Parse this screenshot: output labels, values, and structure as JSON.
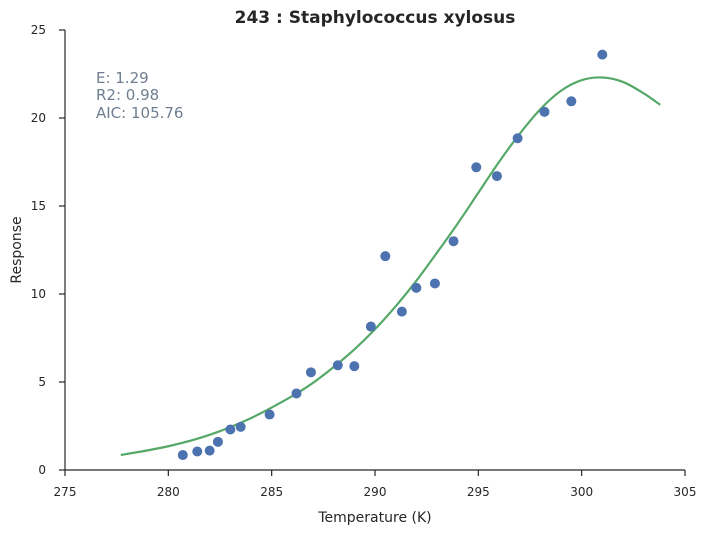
{
  "chart_data": {
    "type": "scatter",
    "title": "243 : Staphylococcus xylosus",
    "xlabel": "Temperature (K)",
    "ylabel": "Response",
    "xlim": [
      275,
      305
    ],
    "ylim": [
      0,
      25
    ],
    "xticks": [
      "275",
      "280",
      "285",
      "290",
      "295",
      "300",
      "305"
    ],
    "yticks": [
      "0",
      "5",
      "10",
      "15",
      "20",
      "25"
    ],
    "grid": false,
    "annotations": [
      "E:  1.29",
      "R2:  0.98",
      "AIC: 105.76"
    ],
    "series": [
      {
        "kind": "points",
        "color": "#4c72b0",
        "x": [
          280.7,
          281.4,
          282.0,
          282.4,
          283.0,
          283.5,
          284.9,
          286.2,
          286.9,
          288.2,
          289.0,
          289.8,
          290.5,
          291.3,
          292.0,
          292.9,
          293.8,
          294.9,
          295.9,
          296.9,
          298.2,
          299.5,
          301.0
        ],
        "y": [
          0.85,
          1.05,
          1.1,
          1.6,
          2.3,
          2.45,
          3.15,
          4.35,
          5.55,
          5.95,
          5.9,
          8.15,
          12.15,
          9.0,
          10.35,
          10.6,
          13.0,
          17.2,
          16.7,
          18.85,
          20.35,
          20.95,
          23.6
        ]
      },
      {
        "kind": "fit",
        "color": "#55a868",
        "x": [
          277.7,
          280,
          282,
          284,
          286,
          287,
          288,
          289,
          290,
          291,
          292,
          293,
          294,
          295,
          296,
          297,
          298,
          299,
          300,
          301,
          302,
          303,
          303.8
        ],
        "y": [
          0.85,
          1.35,
          2.0,
          2.95,
          4.2,
          4.95,
          5.85,
          6.85,
          8.0,
          9.3,
          10.75,
          12.35,
          14.0,
          15.75,
          17.5,
          19.1,
          20.5,
          21.55,
          22.15,
          22.3,
          22.05,
          21.4,
          20.75
        ]
      }
    ]
  }
}
